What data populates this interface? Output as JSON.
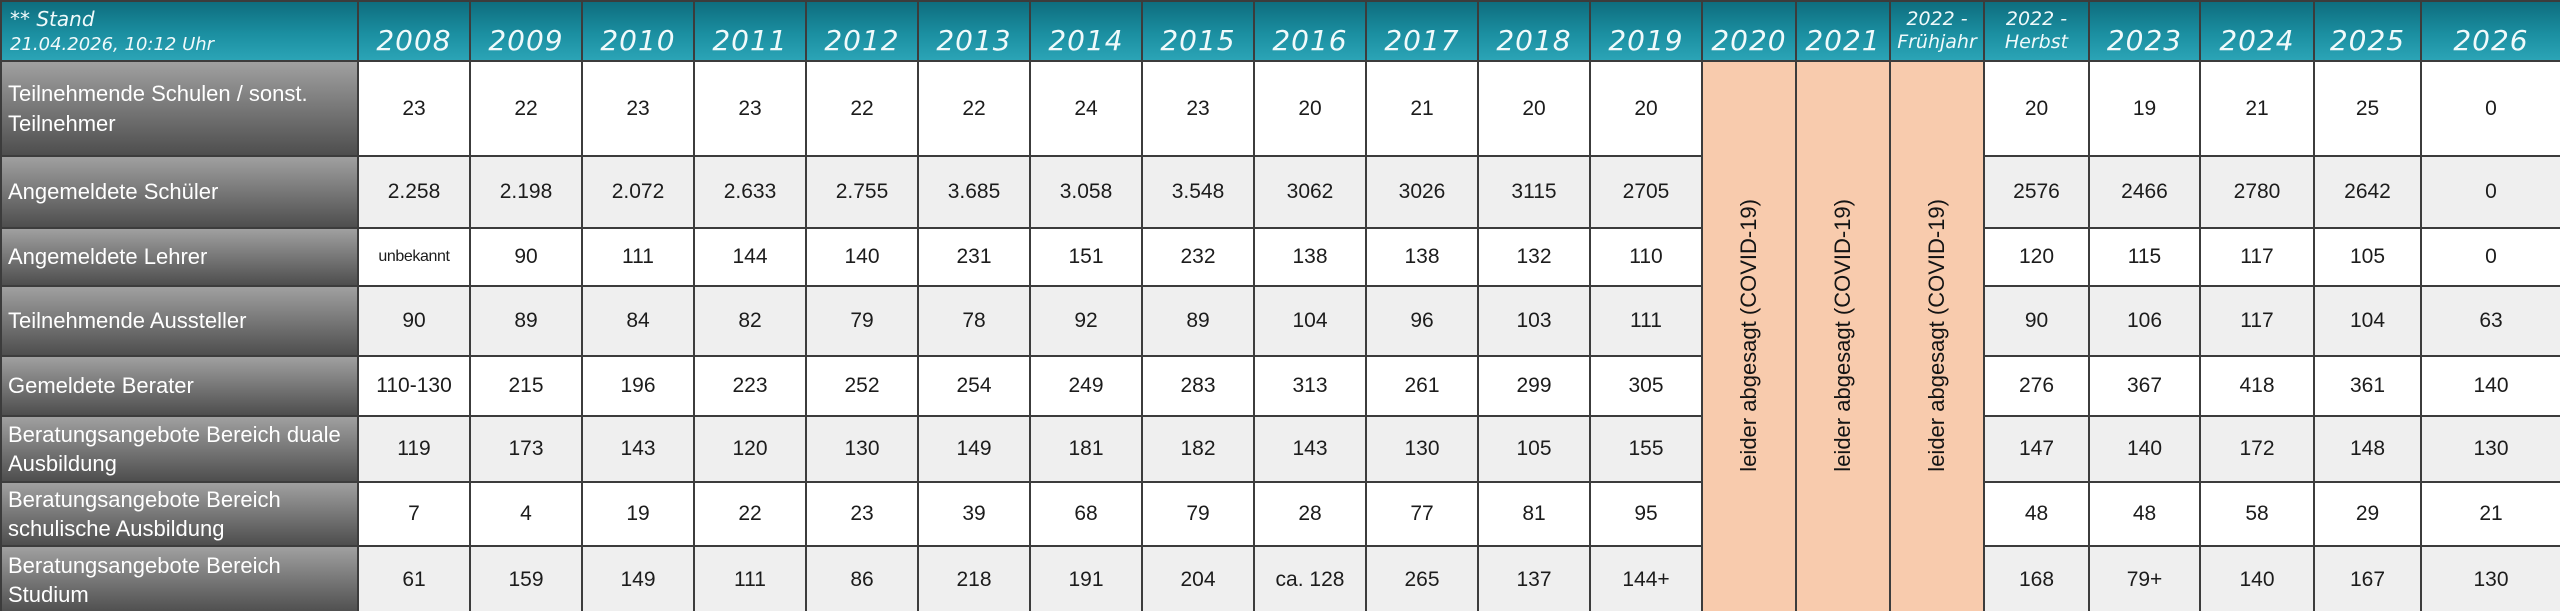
{
  "meta": {
    "stand_line1": "** Stand",
    "stand_line2": "21.04.2026, 10:12 Uhr"
  },
  "covid_note": "leider abgesagt (COVID-19)",
  "columns": [
    {
      "label": "2008"
    },
    {
      "label": "2009"
    },
    {
      "label": "2010"
    },
    {
      "label": "2011"
    },
    {
      "label": "2012"
    },
    {
      "label": "2013"
    },
    {
      "label": "2014"
    },
    {
      "label": "2015"
    },
    {
      "label": "2016"
    },
    {
      "label": "2017"
    },
    {
      "label": "2018"
    },
    {
      "label": "2019"
    },
    {
      "label": "2020",
      "covid": true
    },
    {
      "label": "2021",
      "covid": true
    },
    {
      "label": "2022 -\nFrühjahr",
      "covid": true,
      "small": true
    },
    {
      "label": "2022 -\nHerbst",
      "small": true
    },
    {
      "label": "2023"
    },
    {
      "label": "2024"
    },
    {
      "label": "2025"
    },
    {
      "label": "2026"
    }
  ],
  "rows": [
    {
      "label": "Teilnehmende Schulen / sonst. Teilnehmer",
      "values": [
        "23",
        "22",
        "23",
        "23",
        "22",
        "22",
        "24",
        "23",
        "20",
        "21",
        "20",
        "20",
        "20",
        "19",
        "21",
        "25",
        "0"
      ]
    },
    {
      "label": "Angemeldete Schüler",
      "values": [
        "2.258",
        "2.198",
        "2.072",
        "2.633",
        "2.755",
        "3.685",
        "3.058",
        "3.548",
        "3062",
        "3026",
        "3115",
        "2705",
        "2576",
        "2466",
        "2780",
        "2642",
        "0"
      ]
    },
    {
      "label": "Angemeldete Lehrer",
      "values": [
        "unbekannt",
        "90",
        "111",
        "144",
        "140",
        "231",
        "151",
        "232",
        "138",
        "138",
        "132",
        "110",
        "120",
        "115",
        "117",
        "105",
        "0"
      ]
    },
    {
      "label": "Teilnehmende Aussteller",
      "values": [
        "90",
        "89",
        "84",
        "82",
        "79",
        "78",
        "92",
        "89",
        "104",
        "96",
        "103",
        "111",
        "90",
        "106",
        "117",
        "104",
        "63"
      ]
    },
    {
      "label": "Gemeldete Berater",
      "values": [
        "110-130",
        "215",
        "196",
        "223",
        "252",
        "254",
        "249",
        "283",
        "313",
        "261",
        "299",
        "305",
        "276",
        "367",
        "418",
        "361",
        "140"
      ]
    },
    {
      "label": "Beratungsangebote Bereich duale Ausbildung",
      "values": [
        "119",
        "173",
        "143",
        "120",
        "130",
        "149",
        "181",
        "182",
        "143",
        "130",
        "105",
        "155",
        "147",
        "140",
        "172",
        "148",
        "130"
      ]
    },
    {
      "label": "Beratungsangebote Bereich schulische Ausbildung",
      "values": [
        "7",
        "4",
        "19",
        "22",
        "23",
        "39",
        "68",
        "79",
        "28",
        "77",
        "81",
        "95",
        "48",
        "48",
        "58",
        "29",
        "21"
      ]
    },
    {
      "label": "Beratungsangebote Bereich Studium",
      "values": [
        "61",
        "159",
        "149",
        "111",
        "86",
        "218",
        "191",
        "204",
        "ca. 128",
        "265",
        "137",
        "144+",
        "168",
        "79+",
        "140",
        "167",
        "130"
      ]
    }
  ],
  "colors": {
    "teal-top": "#0E6D7E",
    "teal-mid": "#1B8FA1",
    "teal-bottom": "#2BA4B6",
    "label-top": "#A0A0A0",
    "label-bottom": "#4E4E4E",
    "covid-orange": "#F8CBAD",
    "row-alt": "#EFEFEF",
    "grid": "#3C3C3C",
    "header-text": "#F0FAFB"
  }
}
